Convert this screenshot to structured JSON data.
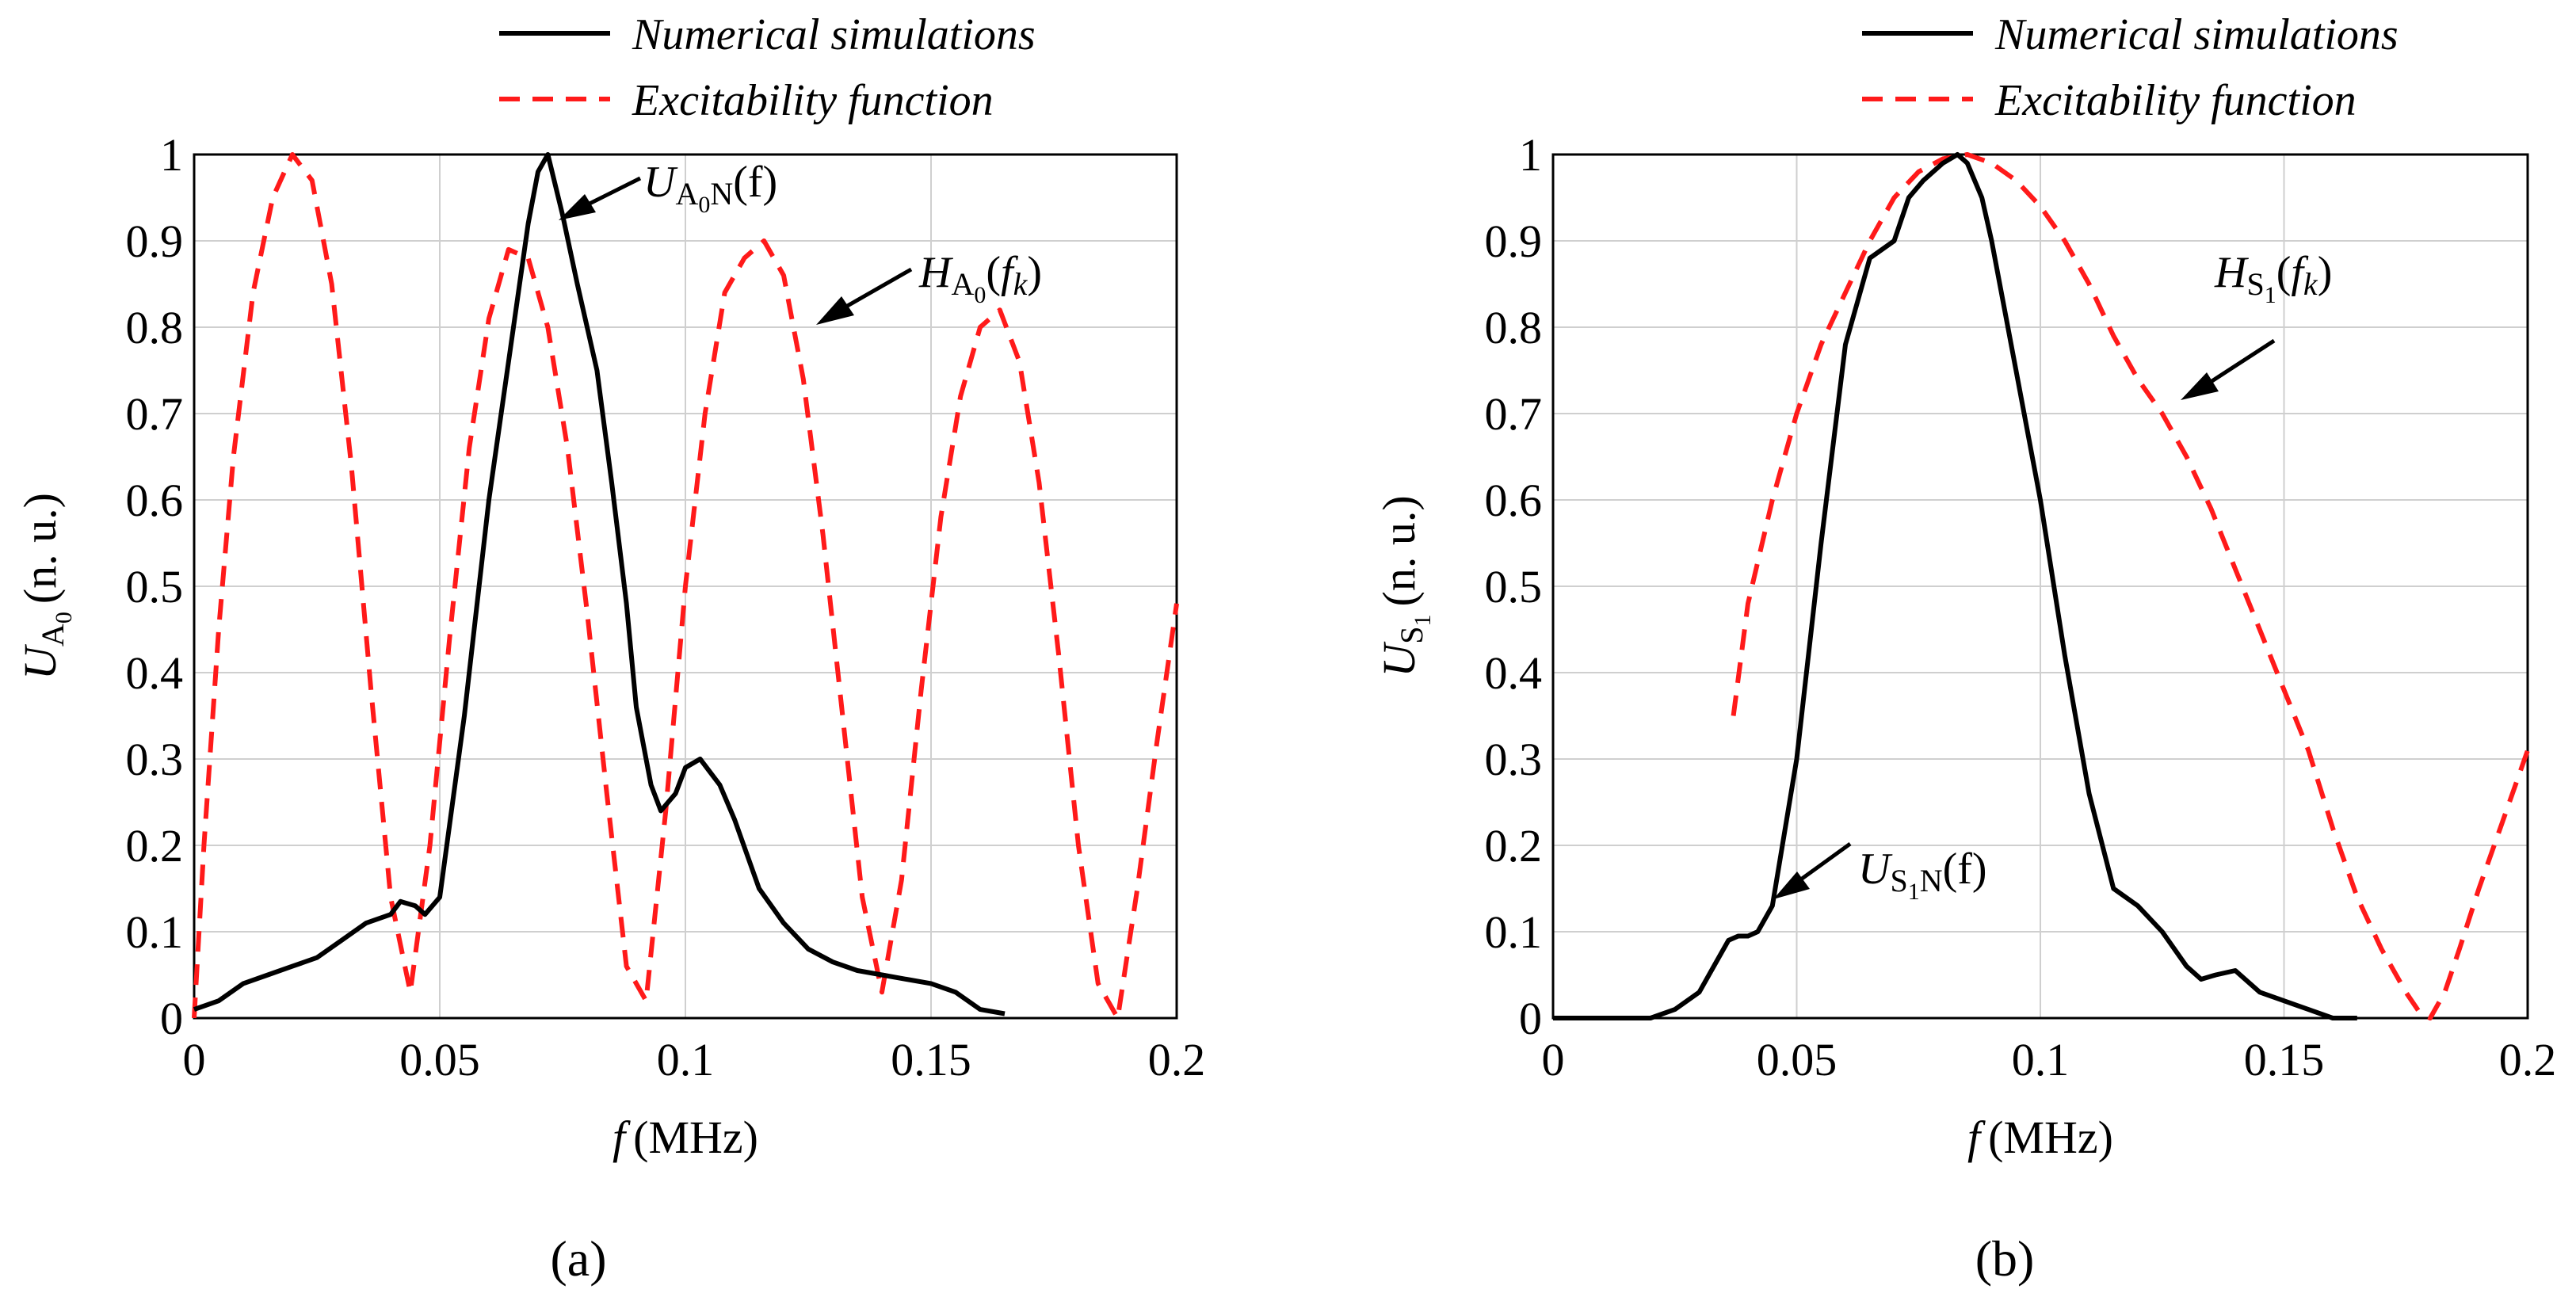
{
  "chart_data": [
    {
      "type": "line",
      "panel_label": "(a)",
      "xlabel_f": "f",
      "xlabel_unit": "(MHz)",
      "ylabel_main": "U",
      "ylabel_sub": "A",
      "ylabel_subsub": "0",
      "ylabel_unit": "(n. u.)",
      "xlim": [
        0,
        0.2
      ],
      "ylim": [
        0,
        1
      ],
      "xticks": [
        "0",
        "0.05",
        "0.1",
        "0.15",
        "0.2"
      ],
      "yticks": [
        "0",
        "0.1",
        "0.2",
        "0.3",
        "0.4",
        "0.5",
        "0.6",
        "0.7",
        "0.8",
        "0.9",
        "1"
      ],
      "legend": {
        "solid": "Numerical simulations",
        "dashed": "Excitability function",
        "placement": "top-right, above plot"
      },
      "annotations": {
        "solid": {
          "main": "U",
          "sub1": "A",
          "sub2": "0",
          "sub3": "N",
          "arg": "(f)"
        },
        "dashed": {
          "main": "H",
          "sub1": "A",
          "sub2": "0",
          "arg_open": "(",
          "arg_f": "f",
          "arg_k": "k",
          "arg_close": ")"
        }
      },
      "series": [
        {
          "name": "Numerical simulations",
          "style": "solid",
          "color": "#000000",
          "x": [
            0,
            0.005,
            0.01,
            0.015,
            0.02,
            0.025,
            0.03,
            0.035,
            0.04,
            0.042,
            0.045,
            0.047,
            0.05,
            0.055,
            0.06,
            0.065,
            0.068,
            0.07,
            0.072,
            0.075,
            0.078,
            0.082,
            0.085,
            0.088,
            0.09,
            0.093,
            0.095,
            0.098,
            0.1,
            0.103,
            0.107,
            0.11,
            0.115,
            0.12,
            0.125,
            0.13,
            0.135,
            0.14,
            0.145,
            0.15,
            0.155,
            0.16,
            0.165
          ],
          "y": [
            0.01,
            0.02,
            0.04,
            0.05,
            0.06,
            0.07,
            0.09,
            0.11,
            0.12,
            0.135,
            0.13,
            0.12,
            0.14,
            0.35,
            0.6,
            0.8,
            0.92,
            0.98,
            1.0,
            0.93,
            0.85,
            0.75,
            0.62,
            0.48,
            0.36,
            0.27,
            0.24,
            0.26,
            0.29,
            0.3,
            0.27,
            0.23,
            0.15,
            0.11,
            0.08,
            0.065,
            0.055,
            0.05,
            0.045,
            0.04,
            0.03,
            0.01,
            0.005
          ]
        },
        {
          "name": "Excitability function",
          "style": "dashed",
          "color": "#ff0000",
          "x": [
            0,
            0.002,
            0.005,
            0.008,
            0.012,
            0.016,
            0.02,
            0.024,
            0.028,
            0.032,
            0.036,
            0.04,
            0.044,
            0.048,
            0.052,
            0.056,
            0.06,
            0.064,
            0.068,
            0.072,
            0.076,
            0.08,
            0.084,
            0.088,
            0.092,
            0.096,
            0.1,
            0.104,
            0.108,
            0.112,
            0.116,
            0.12,
            0.124,
            0.128,
            0.132,
            0.136,
            0.14,
            0.144,
            0.148,
            0.152,
            0.156,
            0.16,
            0.164,
            0.168,
            0.172,
            0.176,
            0.18,
            0.184,
            0.188,
            0.192,
            0.196,
            0.2
          ],
          "y": [
            0.0,
            0.2,
            0.45,
            0.65,
            0.84,
            0.95,
            1.0,
            0.97,
            0.85,
            0.64,
            0.38,
            0.14,
            0.03,
            0.2,
            0.44,
            0.66,
            0.81,
            0.89,
            0.88,
            0.8,
            0.66,
            0.47,
            0.26,
            0.06,
            0.02,
            0.24,
            0.5,
            0.7,
            0.84,
            0.88,
            0.9,
            0.86,
            0.74,
            0.56,
            0.35,
            0.14,
            0.03,
            0.16,
            0.38,
            0.58,
            0.72,
            0.8,
            0.82,
            0.76,
            0.62,
            0.42,
            0.2,
            0.04,
            0.0,
            0.15,
            0.32,
            0.48
          ]
        }
      ]
    },
    {
      "type": "line",
      "panel_label": "(b)",
      "xlabel_f": "f",
      "xlabel_unit": "(MHz)",
      "ylabel_main": "U",
      "ylabel_sub": "S",
      "ylabel_subsub": "1",
      "ylabel_unit": "(n. u.)",
      "xlim": [
        0,
        0.2
      ],
      "ylim": [
        0,
        1
      ],
      "xticks": [
        "0",
        "0.05",
        "0.1",
        "0.15",
        "0.2"
      ],
      "yticks": [
        "0",
        "0.1",
        "0.2",
        "0.3",
        "0.4",
        "0.5",
        "0.6",
        "0.7",
        "0.8",
        "0.9",
        "1"
      ],
      "legend": {
        "solid": "Numerical simulations",
        "dashed": "Excitability function",
        "placement": "top-right, above plot"
      },
      "annotations": {
        "solid": {
          "main": "U",
          "sub1": "S",
          "sub2": "1",
          "sub3": "N",
          "arg": "(f)"
        },
        "dashed": {
          "main": "H",
          "sub1": "S",
          "sub2": "1",
          "arg_open": "(",
          "arg_f": "f",
          "arg_k": "k",
          "arg_close": ")"
        }
      },
      "series": [
        {
          "name": "Numerical simulations",
          "style": "solid",
          "color": "#000000",
          "x": [
            0,
            0.01,
            0.02,
            0.025,
            0.03,
            0.033,
            0.036,
            0.038,
            0.04,
            0.042,
            0.045,
            0.05,
            0.055,
            0.06,
            0.065,
            0.07,
            0.073,
            0.076,
            0.08,
            0.083,
            0.085,
            0.088,
            0.09,
            0.095,
            0.1,
            0.105,
            0.11,
            0.115,
            0.12,
            0.125,
            0.13,
            0.133,
            0.136,
            0.14,
            0.145,
            0.15,
            0.155,
            0.16,
            0.165
          ],
          "y": [
            0,
            0,
            0,
            0.01,
            0.03,
            0.06,
            0.09,
            0.095,
            0.095,
            0.1,
            0.13,
            0.3,
            0.55,
            0.78,
            0.88,
            0.9,
            0.95,
            0.97,
            0.99,
            1.0,
            0.99,
            0.95,
            0.9,
            0.75,
            0.6,
            0.42,
            0.26,
            0.15,
            0.13,
            0.1,
            0.06,
            0.045,
            0.05,
            0.055,
            0.03,
            0.02,
            0.01,
            0,
            0
          ]
        },
        {
          "name": "Excitability function",
          "style": "dashed",
          "color": "#ff0000",
          "x": [
            0.037,
            0.04,
            0.045,
            0.05,
            0.055,
            0.06,
            0.065,
            0.07,
            0.075,
            0.08,
            0.085,
            0.09,
            0.095,
            0.1,
            0.105,
            0.11,
            0.115,
            0.12,
            0.125,
            0.13,
            0.135,
            0.14,
            0.145,
            0.15,
            0.155,
            0.16,
            0.165,
            0.17,
            0.175,
            0.178,
            0.18,
            0.183,
            0.186,
            0.19,
            0.195,
            0.2
          ],
          "y": [
            0.35,
            0.48,
            0.6,
            0.7,
            0.78,
            0.84,
            0.9,
            0.95,
            0.98,
            0.995,
            1.0,
            0.99,
            0.97,
            0.94,
            0.9,
            0.85,
            0.79,
            0.74,
            0.7,
            0.65,
            0.59,
            0.52,
            0.45,
            0.38,
            0.31,
            0.22,
            0.14,
            0.08,
            0.03,
            0.005,
            0.0,
            0.03,
            0.08,
            0.15,
            0.23,
            0.31
          ]
        }
      ]
    }
  ]
}
